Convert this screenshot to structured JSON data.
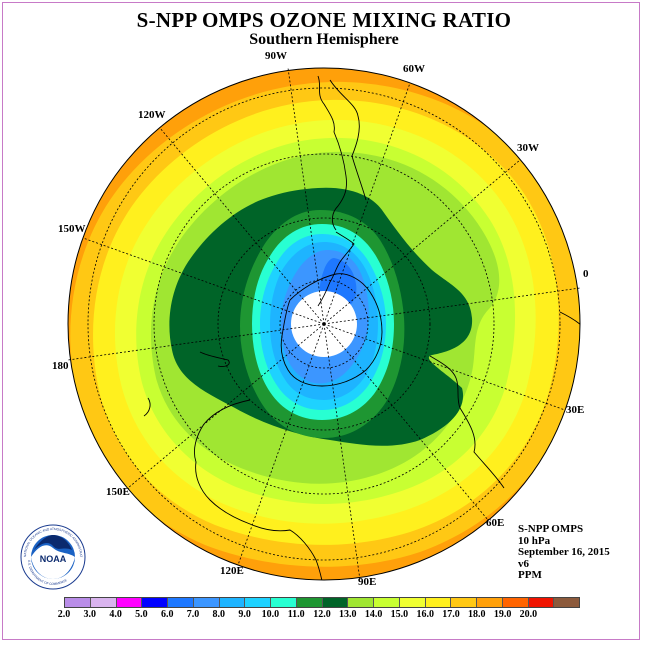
{
  "title": "S-NPP OMPS OZONE MIXING RATIO",
  "subtitle": "Southern Hemisphere",
  "longitude_labels": {
    "w90": "90W",
    "w60": "60W",
    "w120": "120W",
    "w30": "30W",
    "w150": "150W",
    "zero": "0",
    "d180": "180",
    "e30": "30E",
    "e60": "60E",
    "e150": "150E",
    "e120": "120E",
    "e90": "90E"
  },
  "info": {
    "instrument": "S-NPP OMPS",
    "level": "10 hPa",
    "date": "September 16, 2015",
    "version": "v6",
    "units": "PPM"
  },
  "logo": {
    "text": "NOAA",
    "ring_text": "NATIONAL OCEANIC AND ATMOSPHERIC ADMINISTRATION",
    "ring_text_bottom": "U.S. DEPARTMENT OF COMMERCE"
  },
  "colorbar": {
    "colors": [
      "#b98de8",
      "#d9b4ee",
      "#ff00ff",
      "#0000ff",
      "#1e78ff",
      "#3c96ff",
      "#1eb4ff",
      "#1ed2ff",
      "#28ffd2",
      "#1e9632",
      "#006428",
      "#a0e632",
      "#c8ff32",
      "#f0ff32",
      "#fff01e",
      "#ffc814",
      "#ffa00a",
      "#ff6400",
      "#f01400",
      "#8c5a3c"
    ],
    "tick_labels": [
      "2.0",
      "3.0",
      "4.0",
      "5.0",
      "6.0",
      "7.0",
      "8.0",
      "9.0",
      "10.0",
      "11.0",
      "12.0",
      "13.0",
      "14.0",
      "15.0",
      "16.0",
      "17.0",
      "18.0",
      "19.0",
      "20.0"
    ]
  },
  "map_colors": {
    "orange": "#ffa00a",
    "light_orange": "#ffc814",
    "gold": "#fff01e",
    "yellow": "#f0ff32",
    "light_green": "#c8ff32",
    "green": "#a0e632",
    "mid_green": "#1e9632",
    "dark_green": "#006428",
    "cyan": "#28ffd2",
    "light_blue": "#1ed2ff",
    "sky_blue": "#1eb4ff",
    "blue": "#3c96ff",
    "deep_blue": "#1e78ff",
    "pole_hole": "#ffffff"
  }
}
